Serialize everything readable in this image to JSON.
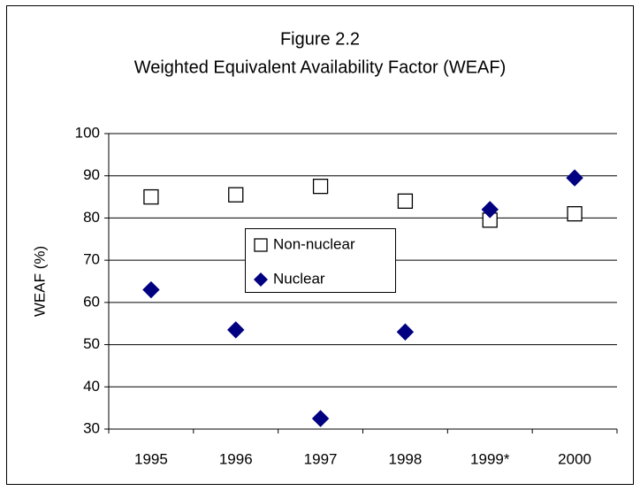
{
  "chart_data": {
    "type": "scatter",
    "title": "Figure 2.2",
    "subtitle": "Weighted Equivalent Availability Factor (WEAF)",
    "y_label": "WEAF (%)",
    "categories": [
      "1995",
      "1996",
      "1997",
      "1998",
      "1999*",
      "2000"
    ],
    "series": [
      {
        "name": "Non-nuclear",
        "color": "#ffffff",
        "marker": "square",
        "values": [
          85,
          85.5,
          87.5,
          84,
          79.5,
          81
        ]
      },
      {
        "name": "Nuclear",
        "color": "#000080",
        "marker": "diamond",
        "values": [
          63,
          53.5,
          32.5,
          53,
          82,
          89.5
        ]
      }
    ],
    "ylim": [
      30,
      100
    ],
    "yticks": [
      30,
      40,
      50,
      60,
      70,
      80,
      90,
      100
    ],
    "grid": true
  }
}
